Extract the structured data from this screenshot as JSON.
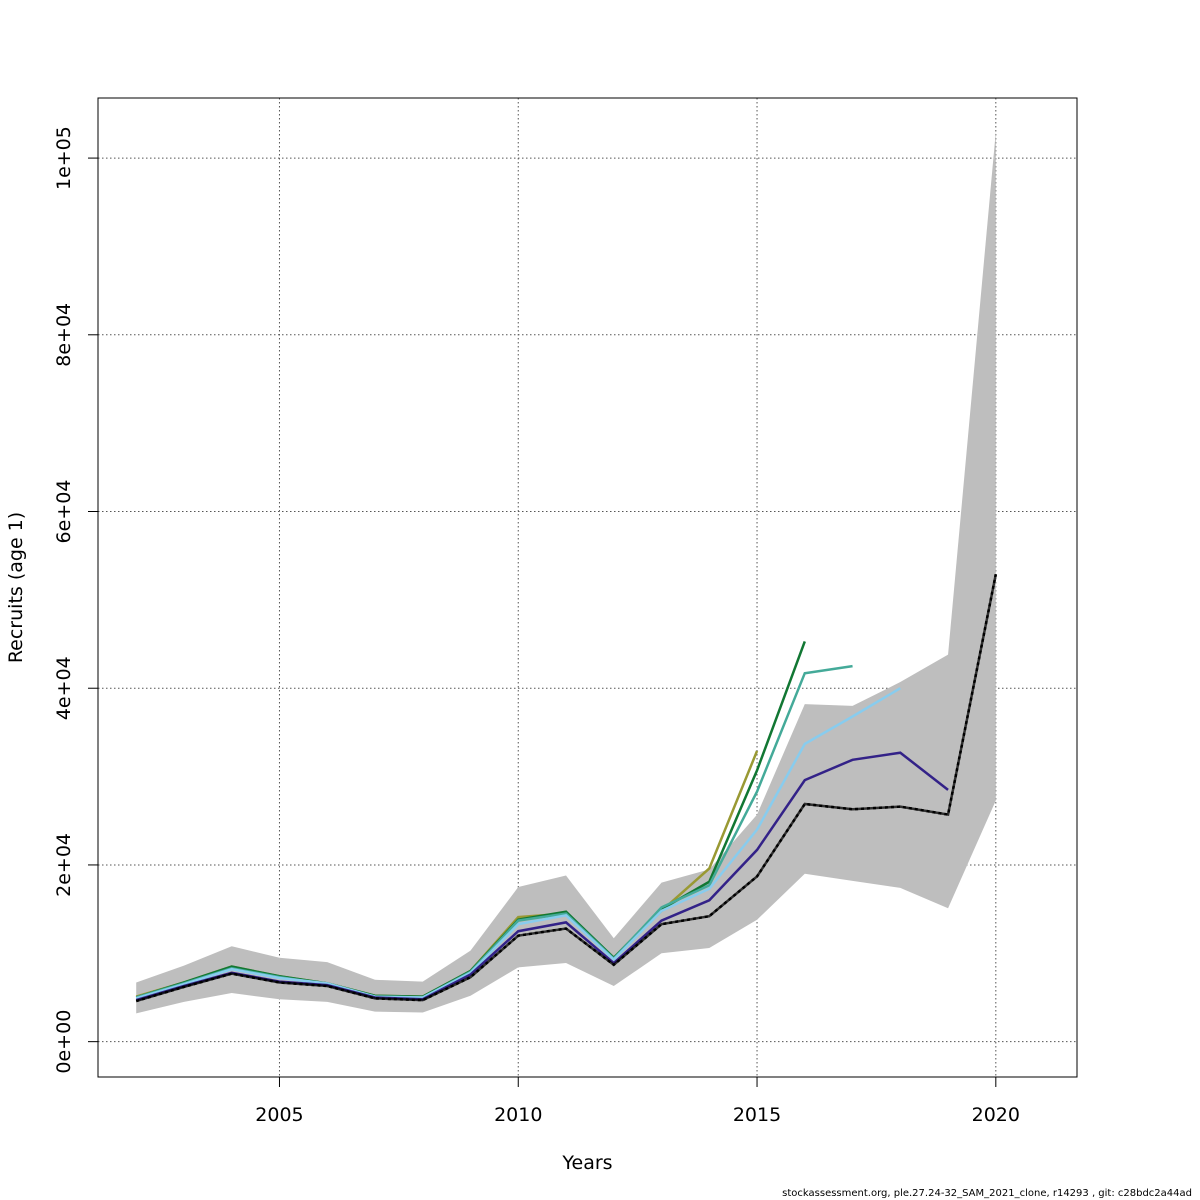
{
  "chart_data": {
    "type": "line",
    "title": "",
    "xlabel": "Years",
    "ylabel": "Recruits (age 1)",
    "xlim": [
      2001.2,
      2021.7
    ],
    "ylim": [
      -4000,
      106800
    ],
    "x_ticks": [
      2005,
      2010,
      2015,
      2020
    ],
    "x_tick_labels": [
      "2005",
      "2010",
      "2015",
      "2020"
    ],
    "y_ticks": [
      0,
      20000,
      40000,
      60000,
      80000,
      100000
    ],
    "y_tick_labels": [
      "0e+00",
      "2e+04",
      "4e+04",
      "6e+04",
      "8e+04",
      "1e+05"
    ],
    "grid": true,
    "legend": "none",
    "confidence_band": {
      "x": [
        2002,
        2003,
        2004,
        2005,
        2006,
        2007,
        2008,
        2009,
        2010,
        2011,
        2012,
        2013,
        2014,
        2015,
        2016,
        2017,
        2018,
        2019,
        2020
      ],
      "lower": [
        3200,
        4500,
        5500,
        4800,
        4500,
        3400,
        3300,
        5200,
        8400,
        8900,
        6300,
        10000,
        10600,
        13800,
        19000,
        18200,
        17400,
        15100,
        27300
      ],
      "upper": [
        6700,
        8600,
        10800,
        9500,
        9000,
        7000,
        6800,
        10300,
        17500,
        18800,
        11700,
        18000,
        19500,
        25700,
        38200,
        38000,
        40700,
        43800,
        103000
      ],
      "color": "#bebebe"
    },
    "series": [
      {
        "color": "#000000",
        "dashed": true,
        "x": [
          2002,
          2003,
          2004,
          2005,
          2006,
          2007,
          2008,
          2009,
          2010,
          2011,
          2012,
          2013,
          2014,
          2015,
          2016,
          2017,
          2018,
          2019,
          2020
        ],
        "values": [
          4600,
          6200,
          7700,
          6700,
          6300,
          4900,
          4700,
          7300,
          12000,
          12800,
          8700,
          13300,
          14200,
          18700,
          26900,
          26300,
          26600,
          25700,
          52900
        ]
      },
      {
        "color": "#332288",
        "x": [
          2002,
          2003,
          2004,
          2005,
          2006,
          2007,
          2008,
          2009,
          2010,
          2011,
          2012,
          2013,
          2014,
          2015,
          2016,
          2017,
          2018,
          2019
        ],
        "values": [
          4700,
          6300,
          7800,
          6800,
          6400,
          5000,
          4800,
          7600,
          12500,
          13500,
          8900,
          13700,
          16000,
          21700,
          29600,
          31900,
          32700,
          28500
        ]
      },
      {
        "color": "#88ccee",
        "x": [
          2002,
          2003,
          2004,
          2005,
          2006,
          2007,
          2008,
          2009,
          2010,
          2011,
          2012,
          2013,
          2014,
          2015,
          2016,
          2017,
          2018
        ],
        "values": [
          4900,
          6500,
          8200,
          7200,
          6600,
          5100,
          5000,
          7800,
          13300,
          14300,
          9300,
          14800,
          17300,
          24000,
          33700,
          36800,
          40000
        ]
      },
      {
        "color": "#44aa99",
        "x": [
          2002,
          2003,
          2004,
          2005,
          2006,
          2007,
          2008,
          2009,
          2010,
          2011,
          2012,
          2013,
          2014,
          2015,
          2016,
          2017
        ],
        "values": [
          5000,
          6600,
          8300,
          7300,
          6500,
          5100,
          5000,
          7900,
          13700,
          14500,
          9400,
          15200,
          17700,
          28300,
          41700,
          42500
        ]
      },
      {
        "color": "#117733",
        "x": [
          2002,
          2003,
          2004,
          2005,
          2006,
          2007,
          2008,
          2009,
          2010,
          2011,
          2012,
          2013,
          2014,
          2015,
          2016
        ],
        "values": [
          5000,
          6700,
          8500,
          7400,
          6600,
          5200,
          5100,
          8000,
          13800,
          14700,
          9500,
          15000,
          18100,
          30700,
          45300
        ]
      },
      {
        "color": "#999933",
        "x": [
          2002,
          2003,
          2004,
          2005,
          2006,
          2007,
          2008,
          2009,
          2010,
          2011,
          2012,
          2013,
          2014,
          2015
        ],
        "values": [
          5100,
          6700,
          8500,
          7400,
          6600,
          5200,
          5100,
          8000,
          14100,
          14500,
          9500,
          14800,
          19600,
          32900
        ]
      }
    ]
  },
  "footer": "stockassessment.org, ple.27.24-32_SAM_2021_clone, r14293 , git: c28bdc2a44ad"
}
